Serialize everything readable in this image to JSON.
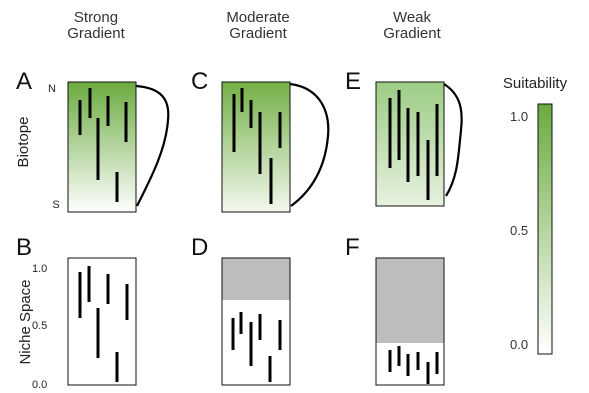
{
  "columns": [
    {
      "line1": "Strong",
      "line2": "Gradient"
    },
    {
      "line1": "Moderate",
      "line2": "Gradient"
    },
    {
      "line1": "Weak",
      "line2": "Gradient"
    }
  ],
  "panels": {
    "top": [
      "A",
      "C",
      "E"
    ],
    "bottom": [
      "B",
      "D",
      "F"
    ]
  },
  "biotope": {
    "title": "Biotope",
    "north": "N",
    "south": "S"
  },
  "niche": {
    "title": "Niche Space",
    "ticks": [
      "1.0",
      "0.5",
      "0.0"
    ],
    "unavailable_fraction": [
      0.0,
      0.33,
      0.64
    ]
  },
  "colorbar": {
    "title": "Suitability",
    "ticks": [
      "1.0",
      "0.5",
      "0.0"
    ],
    "color_high": "#6aab3f",
    "color_low": "#ffffff"
  },
  "colors": {
    "gradient_top": "#6aab3f",
    "unavailable": "#bdbdbd",
    "line": "#000000"
  }
}
